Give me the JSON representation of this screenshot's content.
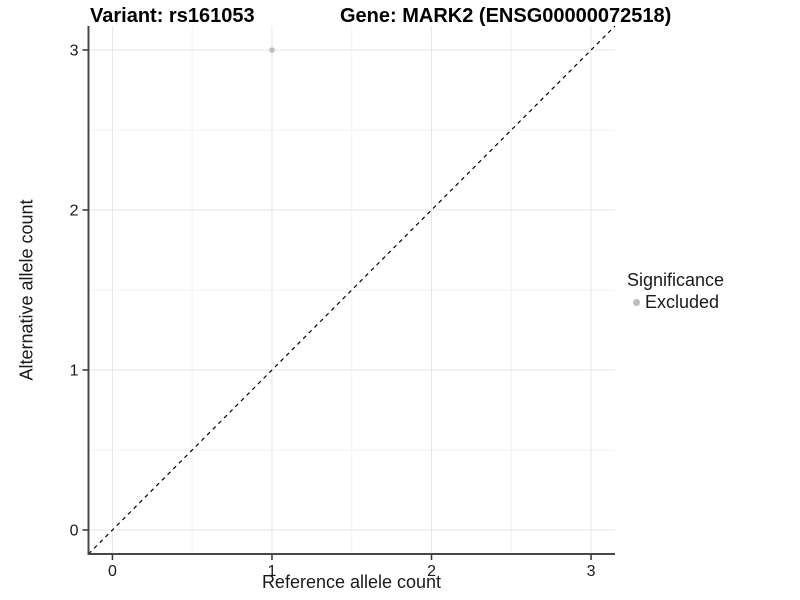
{
  "title": {
    "variant": "Variant: rs161053",
    "gene": "Gene: MARK2 (ENSG00000072518)"
  },
  "axes": {
    "x_label": "Reference allele count",
    "y_label": "Alternative allele count"
  },
  "legend": {
    "title": "Significance",
    "entries": [
      {
        "label": "Excluded",
        "color": "#bdbdbd"
      }
    ]
  },
  "chart_data": {
    "type": "scatter",
    "title": "Variant: rs161053    Gene: MARK2 (ENSG00000072518)",
    "xlabel": "Reference allele count",
    "ylabel": "Alternative allele count",
    "xlim": [
      -0.15,
      3.15
    ],
    "ylim": [
      -0.15,
      3.15
    ],
    "x_ticks": [
      0,
      1,
      2,
      3
    ],
    "y_ticks": [
      0,
      1,
      2,
      3
    ],
    "x_minor_ticks": [
      0.5,
      1.5,
      2.5
    ],
    "y_minor_ticks": [
      0.5,
      1.5,
      2.5
    ],
    "grid": true,
    "legend_position": "right",
    "series": [
      {
        "name": "Excluded",
        "color": "#bdbdbd",
        "points": [
          {
            "x": 1,
            "y": 3
          }
        ]
      }
    ],
    "reference_line": {
      "slope": 1,
      "intercept": 0,
      "style": "dashed",
      "color": "#000000"
    },
    "style": {
      "panel_background": "#ffffff",
      "grid_major_color": "#e6e6e6",
      "grid_minor_color": "#f2f2f2",
      "axis_line_color": "#474747",
      "tick_color": "#333333",
      "tick_label_color": "#1a1a1a",
      "point_radius": 2.8
    }
  }
}
